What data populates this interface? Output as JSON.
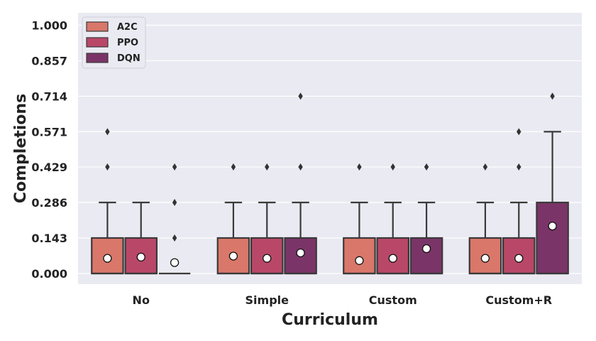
{
  "chart_data": {
    "type": "box",
    "xlabel": "Curriculum",
    "ylabel": "Completions",
    "categories": [
      "No",
      "Simple",
      "Custom",
      "Custom+R"
    ],
    "yticks": [
      "0.000",
      "0.143",
      "0.286",
      "0.429",
      "0.571",
      "0.714",
      "0.857",
      "1.000"
    ],
    "ylim": [
      -0.043,
      1.05
    ],
    "grid": true,
    "legend_position": "top-left",
    "series": [
      {
        "name": "A2C",
        "color": "#d9776a",
        "boxes": [
          {
            "q1": 0.0,
            "median": 0.0,
            "q3": 0.143,
            "whisker_low": 0.0,
            "whisker_high": 0.286,
            "mean": 0.061,
            "outliers": [
              0.429,
              0.571
            ]
          },
          {
            "q1": 0.0,
            "median": 0.0,
            "q3": 0.143,
            "whisker_low": 0.0,
            "whisker_high": 0.286,
            "mean": 0.07,
            "outliers": [
              0.429
            ]
          },
          {
            "q1": 0.0,
            "median": 0.0,
            "q3": 0.143,
            "whisker_low": 0.0,
            "whisker_high": 0.286,
            "mean": 0.052,
            "outliers": [
              0.429
            ]
          },
          {
            "q1": 0.0,
            "median": 0.0,
            "q3": 0.143,
            "whisker_low": 0.0,
            "whisker_high": 0.286,
            "mean": 0.061,
            "outliers": [
              0.429
            ]
          }
        ]
      },
      {
        "name": "PPO",
        "color": "#b94768",
        "boxes": [
          {
            "q1": 0.0,
            "median": 0.0,
            "q3": 0.143,
            "whisker_low": 0.0,
            "whisker_high": 0.286,
            "mean": 0.066,
            "outliers": []
          },
          {
            "q1": 0.0,
            "median": 0.0,
            "q3": 0.143,
            "whisker_low": 0.0,
            "whisker_high": 0.286,
            "mean": 0.061,
            "outliers": [
              0.429
            ]
          },
          {
            "q1": 0.0,
            "median": 0.0,
            "q3": 0.143,
            "whisker_low": 0.0,
            "whisker_high": 0.286,
            "mean": 0.061,
            "outliers": [
              0.429
            ]
          },
          {
            "q1": 0.0,
            "median": 0.0,
            "q3": 0.143,
            "whisker_low": 0.0,
            "whisker_high": 0.286,
            "mean": 0.061,
            "outliers": [
              0.429,
              0.571
            ]
          }
        ]
      },
      {
        "name": "DQN",
        "color": "#7b3468",
        "boxes": [
          {
            "q1": 0.0,
            "median": 0.0,
            "q3": 0.0,
            "whisker_low": 0.0,
            "whisker_high": 0.0,
            "mean": 0.044,
            "outliers": [
              0.143,
              0.286,
              0.429
            ]
          },
          {
            "q1": 0.0,
            "median": 0.0,
            "q3": 0.143,
            "whisker_low": 0.0,
            "whisker_high": 0.286,
            "mean": 0.083,
            "outliers": [
              0.429,
              0.714
            ]
          },
          {
            "q1": 0.0,
            "median": 0.0,
            "q3": 0.143,
            "whisker_low": 0.0,
            "whisker_high": 0.286,
            "mean": 0.1,
            "outliers": [
              0.429
            ]
          },
          {
            "q1": 0.0,
            "median": 0.0,
            "q3": 0.286,
            "whisker_low": 0.0,
            "whisker_high": 0.571,
            "mean": 0.191,
            "outliers": [
              0.714
            ]
          }
        ]
      }
    ]
  }
}
